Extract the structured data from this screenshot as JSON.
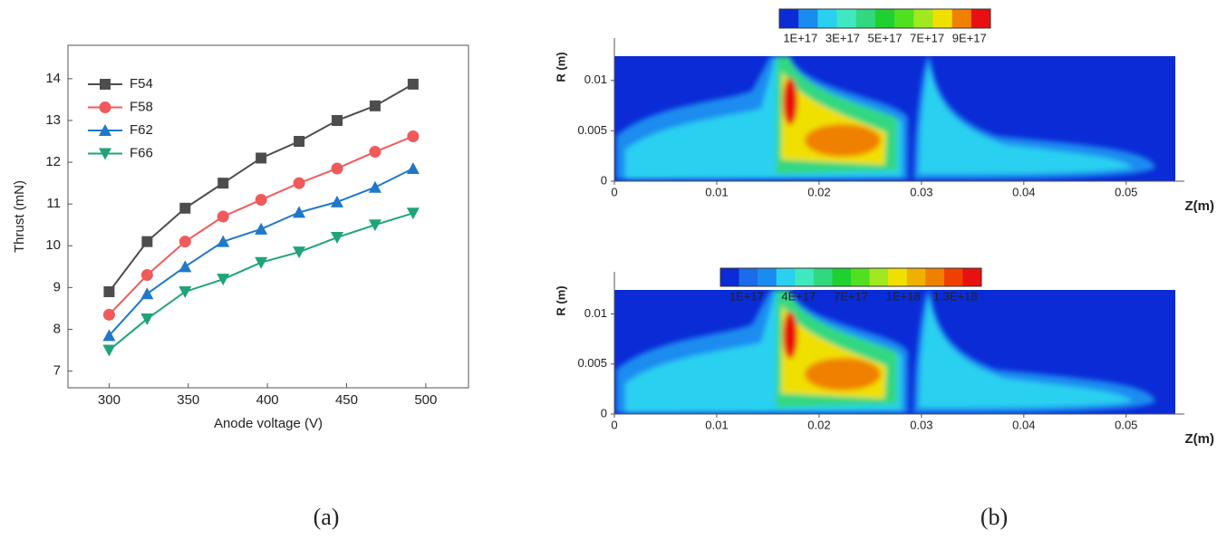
{
  "chart_data": [
    {
      "type": "line",
      "x_label": "Anode voltage (V)",
      "y_label": "Thrust (mN)",
      "x": [
        300,
        324,
        348,
        372,
        396,
        420,
        444,
        468,
        492
      ],
      "series": [
        {
          "name": "F54",
          "color": "#4d4d4d",
          "marker": "square",
          "values": [
            8.9,
            10.1,
            10.9,
            11.5,
            12.1,
            12.5,
            13.0,
            13.35,
            13.87
          ]
        },
        {
          "name": "F58",
          "color": "#f05a5a",
          "marker": "circle",
          "values": [
            8.35,
            9.3,
            10.1,
            10.7,
            11.1,
            11.5,
            11.85,
            12.25,
            12.62
          ]
        },
        {
          "name": "F62",
          "color": "#1f78c8",
          "marker": "triangle-up",
          "values": [
            7.85,
            8.85,
            9.5,
            10.1,
            10.4,
            10.8,
            11.05,
            11.4,
            11.85
          ]
        },
        {
          "name": "F66",
          "color": "#1fa37a",
          "marker": "triangle-down",
          "values": [
            7.5,
            8.25,
            8.9,
            9.2,
            9.6,
            9.85,
            10.2,
            10.5,
            10.78
          ]
        }
      ],
      "xlim": [
        274,
        527
      ],
      "xticks": [
        300,
        350,
        400,
        450,
        500
      ],
      "ylim": [
        6.6,
        14.8
      ],
      "yticks": [
        7,
        8,
        9,
        10,
        11,
        12,
        13,
        14
      ],
      "legend": "upper-left",
      "grid": false,
      "caption": "(a)"
    },
    {
      "type": "contour",
      "x_label": "Z(m)",
      "y_label": "R (m)",
      "xlim": [
        0,
        0.0548
      ],
      "xticks": [
        0,
        0.01,
        0.02,
        0.03,
        0.04,
        0.05
      ],
      "ylim": [
        0,
        0.0124
      ],
      "yticks": [
        0,
        0.005,
        0.01
      ],
      "colorbar": {
        "colors": [
          "#0a2bd6",
          "#1a8cf0",
          "#2ad0f0",
          "#40e8c0",
          "#30d880",
          "#20d030",
          "#50e020",
          "#a0e820",
          "#f0e000",
          "#f08000",
          "#e81010"
        ],
        "labels": [
          "1E+17",
          "3E+17",
          "5E+17",
          "7E+17",
          "9E+17"
        ]
      }
    },
    {
      "type": "contour",
      "x_label": "Z(m)",
      "y_label": "R (m)",
      "xlim": [
        0,
        0.0548
      ],
      "xticks": [
        0,
        0.01,
        0.02,
        0.03,
        0.04,
        0.05
      ],
      "ylim": [
        0,
        0.0124
      ],
      "yticks": [
        0,
        0.005,
        0.01
      ],
      "colorbar": {
        "colors": [
          "#0a2bd6",
          "#1a6ce8",
          "#1a8cf0",
          "#2ad0f0",
          "#40e8c0",
          "#30d880",
          "#20d030",
          "#50e020",
          "#a0e820",
          "#f0e000",
          "#f0b000",
          "#f08000",
          "#f04000",
          "#e81010"
        ],
        "labels": [
          "1E+17",
          "4E+17",
          "7E+17",
          "1E+18",
          "1.3E+18"
        ]
      },
      "caption": "(b)"
    }
  ]
}
